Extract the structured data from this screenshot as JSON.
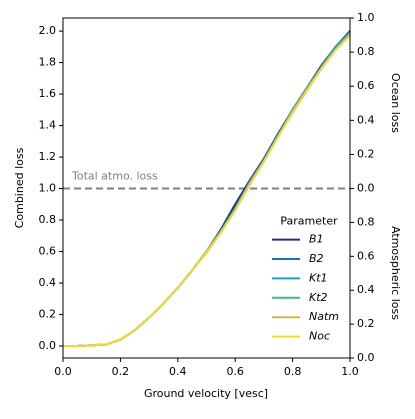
{
  "chart_data": {
    "type": "line",
    "xlabel": "Ground velocity [vesc]",
    "ylabel": "Combined loss",
    "x": [
      0,
      0.05,
      0.1,
      0.15,
      0.2,
      0.25,
      0.3,
      0.35,
      0.4,
      0.45,
      0.5,
      0.55,
      0.6,
      0.65,
      0.7,
      0.75,
      0.8,
      0.85,
      0.9,
      0.95,
      1.0
    ],
    "series": [
      {
        "name": "B1",
        "color": "#2c2a80",
        "values": [
          0,
          0,
          0.005,
          0.01,
          0.04,
          0.1,
          0.18,
          0.27,
          0.37,
          0.48,
          0.6,
          0.74,
          0.9,
          1.05,
          1.19,
          1.35,
          1.5,
          1.64,
          1.78,
          1.9,
          2.0
        ]
      },
      {
        "name": "B2",
        "color": "#1f6fb8",
        "values": [
          0,
          0,
          0.005,
          0.01,
          0.04,
          0.1,
          0.18,
          0.27,
          0.37,
          0.48,
          0.6,
          0.73,
          0.88,
          1.04,
          1.18,
          1.34,
          1.5,
          1.64,
          1.77,
          1.9,
          1.99
        ]
      },
      {
        "name": "Kt1",
        "color": "#1a9fcf",
        "values": [
          0,
          0,
          0.005,
          0.01,
          0.04,
          0.1,
          0.18,
          0.27,
          0.37,
          0.48,
          0.6,
          0.73,
          0.87,
          1.04,
          1.18,
          1.34,
          1.5,
          1.64,
          1.77,
          1.9,
          1.99
        ]
      },
      {
        "name": "Kt2",
        "color": "#3bb99a",
        "values": [
          0,
          0,
          0.005,
          0.01,
          0.04,
          0.1,
          0.18,
          0.27,
          0.37,
          0.48,
          0.6,
          0.73,
          0.87,
          1.03,
          1.18,
          1.34,
          1.49,
          1.63,
          1.77,
          1.89,
          1.99
        ]
      },
      {
        "name": "Natm",
        "color": "#c9b850",
        "values": [
          0,
          0,
          0.005,
          0.01,
          0.04,
          0.1,
          0.18,
          0.27,
          0.37,
          0.48,
          0.6,
          0.72,
          0.86,
          1.03,
          1.17,
          1.33,
          1.49,
          1.63,
          1.76,
          1.88,
          1.98
        ]
      },
      {
        "name": "Noc",
        "color": "#f5d73a",
        "values": [
          0,
          0,
          0.005,
          0.01,
          0.04,
          0.1,
          0.18,
          0.27,
          0.37,
          0.48,
          0.59,
          0.72,
          0.86,
          1.02,
          1.17,
          1.33,
          1.48,
          1.62,
          1.76,
          1.88,
          1.97
        ]
      }
    ],
    "xlim": [
      0,
      1.0
    ],
    "xticks": [
      {
        "value": 0,
        "label": "0.0"
      },
      0.2,
      0.4,
      0.6,
      0.8,
      {
        "value": 1.0,
        "label": "1.0"
      }
    ],
    "ylim": [
      -0.076,
      2.083
    ],
    "yticks": [
      {
        "value": 0,
        "label": "0.0"
      },
      0.2,
      0.4,
      0.6,
      0.8,
      {
        "value": 1.0,
        "label": "1.0"
      },
      1.2,
      1.4,
      1.6,
      1.8,
      {
        "value": 2.0,
        "label": "2.0"
      }
    ],
    "hline": {
      "value": 1.0,
      "color": "#808080",
      "label": "Total atmo. loss"
    },
    "ocean_axis": {
      "label": "Ocean loss",
      "lim": [
        0,
        1.0
      ],
      "ticks": [
        {
          "value": 0,
          "label": "0.0"
        },
        0.2,
        0.4,
        0.6,
        0.8,
        {
          "value": 1.0,
          "label": "1.0"
        }
      ]
    },
    "atmo_axis": {
      "label": "Atmospheric loss",
      "lim": [
        0,
        1.0
      ],
      "ticks": [
        {
          "value": 0,
          "label": "0.0"
        },
        0.2,
        0.4,
        0.6,
        0.8
      ]
    },
    "legend": {
      "title": "Parameter",
      "loc": "lower right"
    }
  }
}
